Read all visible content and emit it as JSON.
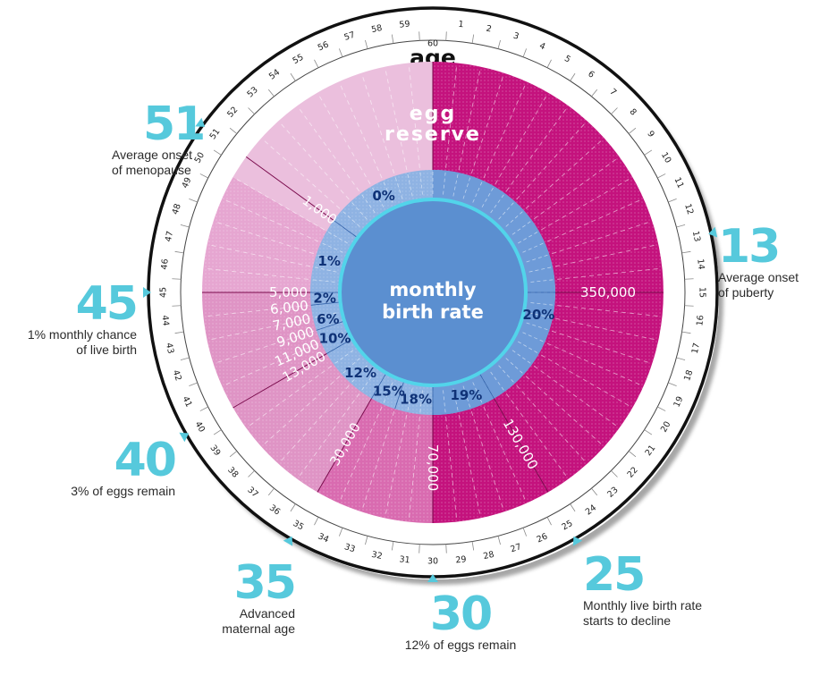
{
  "title": "age",
  "center_label": [
    "monthly",
    "birth rate"
  ],
  "reserve_label": [
    "egg",
    "reserve"
  ],
  "colors": {
    "ring_stroke": "#111111",
    "accent": "#56c9dc",
    "pink_light": "#ebbfdd",
    "pink_mid": "#df94c5",
    "pink_dark": "#c4127d",
    "blue_inner": "#5b8fd0",
    "blue_ring": "#8fb3e3",
    "rate_text": "#0f3277"
  },
  "age_ticks": [
    "60",
    "1",
    "2",
    "3",
    "4",
    "5",
    "6",
    "7",
    "8",
    "9",
    "10",
    "11",
    "12",
    "13",
    "14",
    "15",
    "16",
    "17",
    "18",
    "19",
    "20",
    "21",
    "22",
    "23",
    "24",
    "25",
    "26",
    "27",
    "28",
    "29",
    "30",
    "31",
    "32",
    "33",
    "34",
    "35",
    "36",
    "37",
    "38",
    "39",
    "40",
    "41",
    "42",
    "43",
    "44",
    "45",
    "46",
    "47",
    "48",
    "49",
    "50",
    "51",
    "52",
    "53",
    "54",
    "55",
    "56",
    "57",
    "58",
    "59"
  ],
  "egg_counts": [
    {
      "age": 15,
      "label": "350,000"
    },
    {
      "age": 25,
      "label": "130,000"
    },
    {
      "age": 30,
      "label": "70,000"
    },
    {
      "age": 35,
      "label": "30,000"
    },
    {
      "age": 40,
      "label": "13,000"
    },
    {
      "age": 41,
      "label": "11,000"
    },
    {
      "age": 42,
      "label": "9,000"
    },
    {
      "age": 43,
      "label": "7,000"
    },
    {
      "age": 44,
      "label": "6,000"
    },
    {
      "age": 45,
      "label": "5,000"
    },
    {
      "age": 51,
      "label": "1,000"
    }
  ],
  "birth_rates": [
    {
      "age": 17,
      "label": "20%"
    },
    {
      "age": 27,
      "label": "19%"
    },
    {
      "age": 31.5,
      "label": "18%"
    },
    {
      "age": 34,
      "label": "15%"
    },
    {
      "age": 37,
      "label": "12%"
    },
    {
      "age": 40.8,
      "label": "10%"
    },
    {
      "age": 42.6,
      "label": "6%"
    },
    {
      "age": 44.5,
      "label": "2%"
    },
    {
      "age": 47.8,
      "label": "1%"
    },
    {
      "age": 55.5,
      "label": "0%"
    }
  ],
  "callouts": [
    {
      "number": "13",
      "caption": "Average onset of puberty",
      "lines": [
        "Average onset",
        "of puberty"
      ]
    },
    {
      "number": "25",
      "caption": "Monthly live birth rate starts to decline",
      "lines": [
        "Monthly live birth rate",
        "starts to decline"
      ]
    },
    {
      "number": "30",
      "caption": "12% of eggs remain",
      "lines": [
        "12% of eggs remain"
      ]
    },
    {
      "number": "35",
      "caption": "Advanced maternal age",
      "lines": [
        "Advanced",
        "maternal age"
      ]
    },
    {
      "number": "40",
      "caption": "3% of eggs remain",
      "lines": [
        "3% of eggs remain"
      ]
    },
    {
      "number": "45",
      "caption": "1% monthly chance of live birth",
      "lines": [
        "1% monthly chance",
        "of live birth"
      ]
    },
    {
      "number": "51",
      "caption": "Average onset of menopause",
      "lines": [
        "Average onset",
        "of menopause"
      ]
    }
  ]
}
